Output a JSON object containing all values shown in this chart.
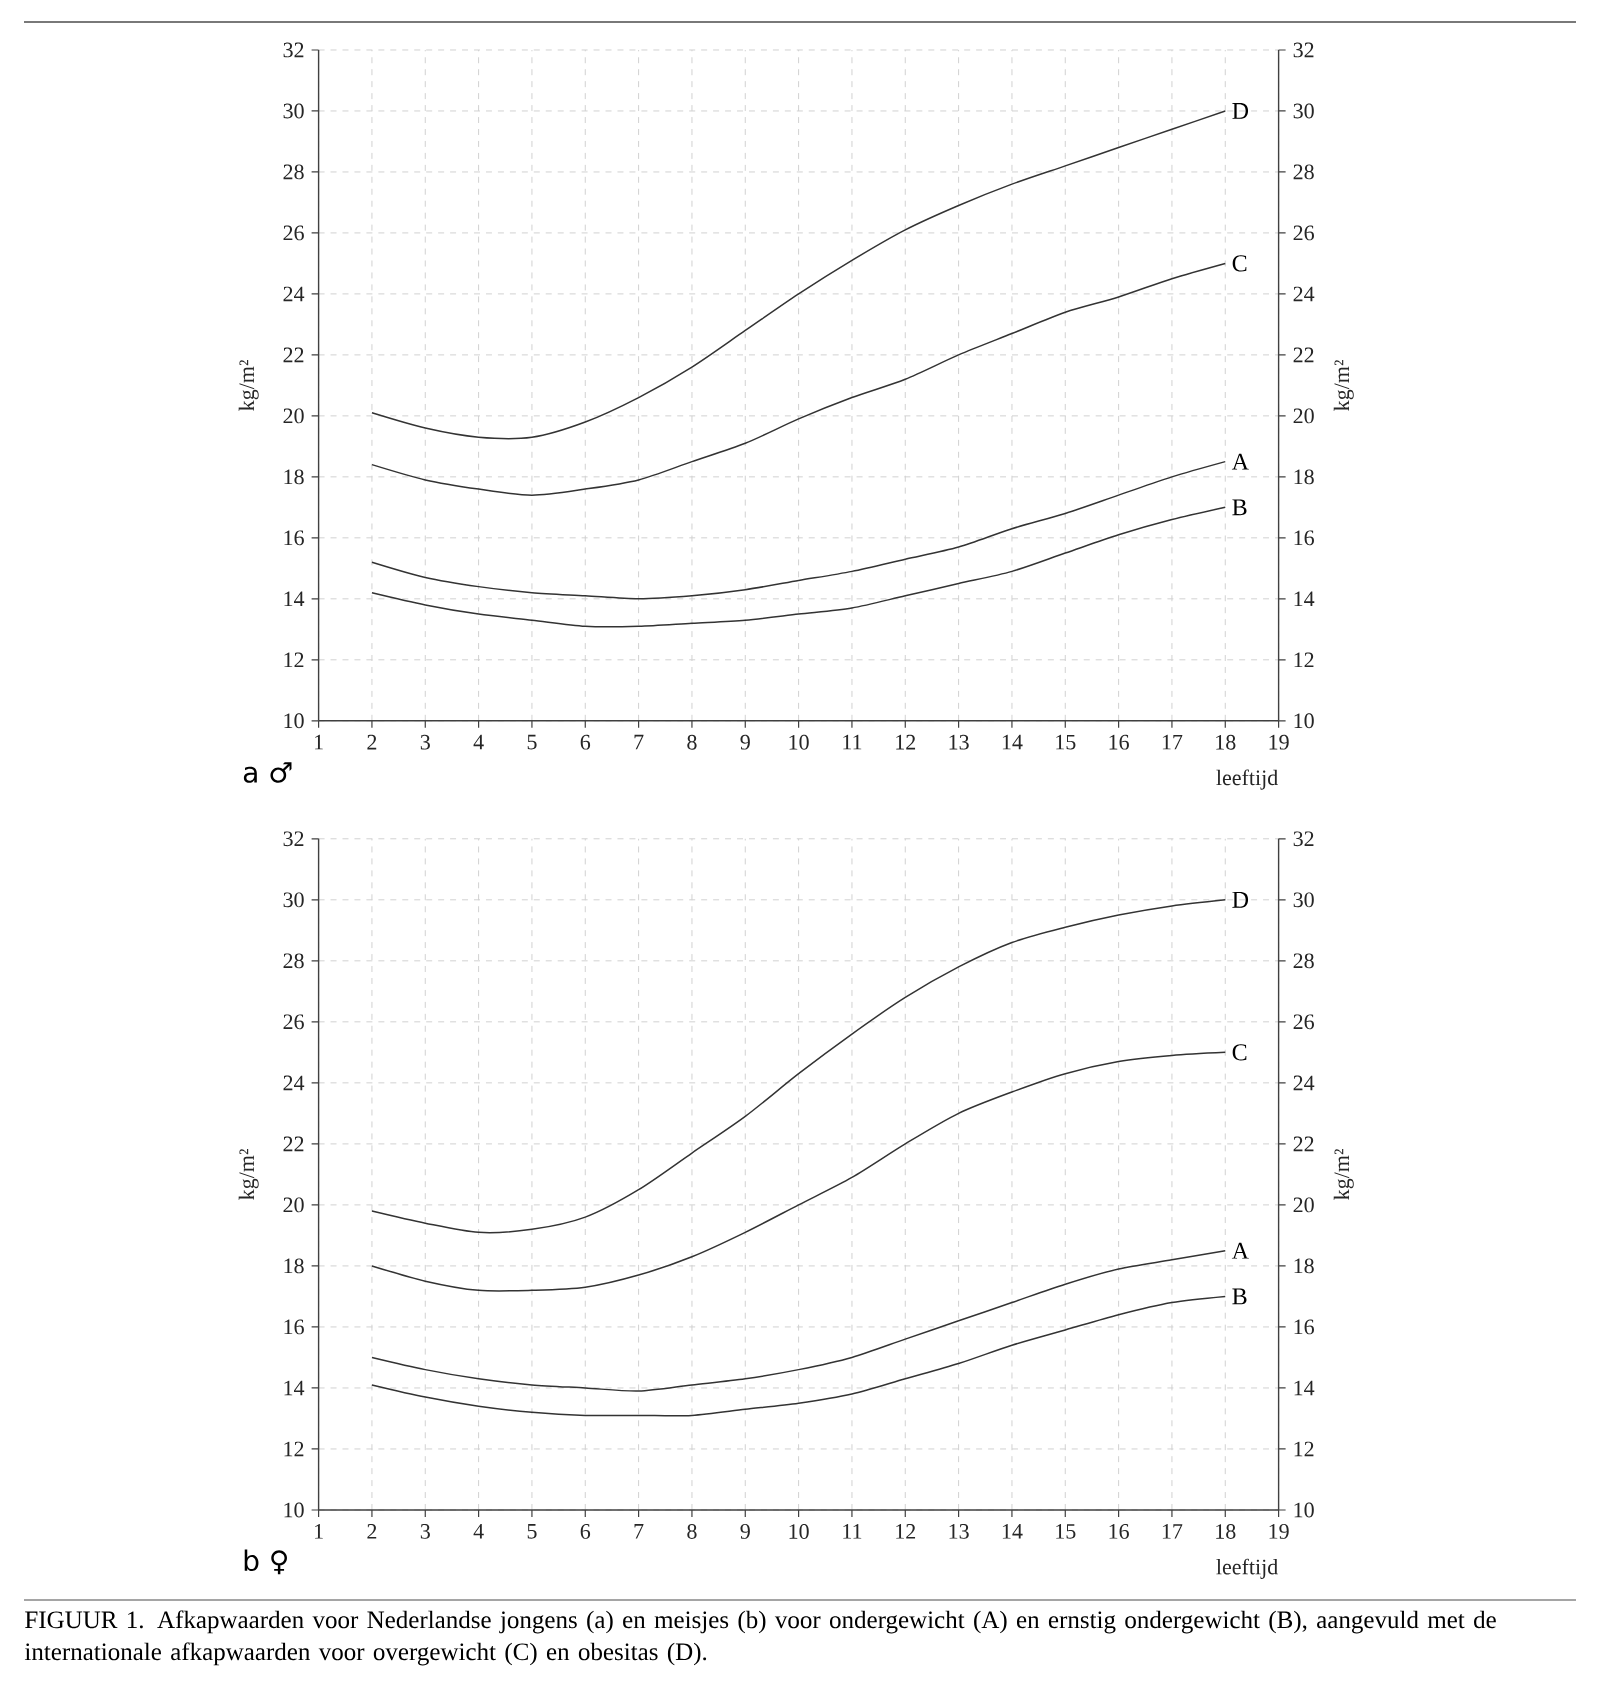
{
  "chart_data": [
    {
      "type": "line",
      "title": "a ♂",
      "xlabel": "leeftijd",
      "ylabel": "kg/m²",
      "y2label": "kg/m²",
      "x": [
        2,
        3,
        4,
        5,
        6,
        7,
        8,
        9,
        10,
        11,
        12,
        13,
        14,
        15,
        16,
        17,
        18
      ],
      "series": [
        {
          "name": "A",
          "color": "#333333",
          "values": [
            15.2,
            14.7,
            14.4,
            14.2,
            14.1,
            14.0,
            14.1,
            14.3,
            14.6,
            14.9,
            15.3,
            15.7,
            16.3,
            16.8,
            17.4,
            18.0,
            18.5
          ]
        },
        {
          "name": "B",
          "color": "#333333",
          "values": [
            14.2,
            13.8,
            13.5,
            13.3,
            13.1,
            13.1,
            13.2,
            13.3,
            13.5,
            13.7,
            14.1,
            14.5,
            14.9,
            15.5,
            16.1,
            16.6,
            17.0
          ]
        },
        {
          "name": "C",
          "color": "#333333",
          "values": [
            18.4,
            17.9,
            17.6,
            17.4,
            17.6,
            17.9,
            18.5,
            19.1,
            19.9,
            20.6,
            21.2,
            22.0,
            22.7,
            23.4,
            23.9,
            24.5,
            25.0
          ]
        },
        {
          "name": "D",
          "color": "#333333",
          "values": [
            20.1,
            19.6,
            19.3,
            19.3,
            19.8,
            20.6,
            21.6,
            22.8,
            24.0,
            25.1,
            26.1,
            26.9,
            27.6,
            28.2,
            28.8,
            29.4,
            30.0
          ]
        }
      ],
      "xlim": [
        1,
        19
      ],
      "xticks": [
        1,
        2,
        3,
        4,
        5,
        6,
        7,
        8,
        9,
        10,
        11,
        12,
        13,
        14,
        15,
        16,
        17,
        18,
        19
      ],
      "ylim": [
        10,
        32
      ],
      "yticks": [
        10,
        12,
        14,
        16,
        18,
        20,
        22,
        24,
        26,
        28,
        30,
        32
      ],
      "y2lim": [
        10,
        32
      ],
      "y2ticks": [
        10,
        12,
        14,
        16,
        18,
        20,
        22,
        24,
        26,
        28,
        30,
        32
      ],
      "grid": true,
      "line_style": "solid"
    },
    {
      "type": "line",
      "title": "b ♀",
      "xlabel": "leeftijd",
      "ylabel": "kg/m²",
      "y2label": "kg/m²",
      "x": [
        2,
        3,
        4,
        5,
        6,
        7,
        8,
        9,
        10,
        11,
        12,
        13,
        14,
        15,
        16,
        17,
        18
      ],
      "series": [
        {
          "name": "A",
          "color": "#333333",
          "values": [
            15.0,
            14.6,
            14.3,
            14.1,
            14.0,
            13.9,
            14.1,
            14.3,
            14.6,
            15.0,
            15.6,
            16.2,
            16.8,
            17.4,
            17.9,
            18.2,
            18.5
          ]
        },
        {
          "name": "B",
          "color": "#333333",
          "values": [
            14.1,
            13.7,
            13.4,
            13.2,
            13.1,
            13.1,
            13.1,
            13.3,
            13.5,
            13.8,
            14.3,
            14.8,
            15.4,
            15.9,
            16.4,
            16.8,
            17.0
          ]
        },
        {
          "name": "C",
          "color": "#333333",
          "values": [
            18.0,
            17.5,
            17.2,
            17.2,
            17.3,
            17.7,
            18.3,
            19.1,
            20.0,
            20.9,
            22.0,
            23.0,
            23.7,
            24.3,
            24.7,
            24.9,
            25.0
          ]
        },
        {
          "name": "D",
          "color": "#333333",
          "values": [
            19.8,
            19.4,
            19.1,
            19.2,
            19.6,
            20.5,
            21.7,
            22.9,
            24.3,
            25.6,
            26.8,
            27.8,
            28.6,
            29.1,
            29.5,
            29.8,
            30.0
          ]
        }
      ],
      "xlim": [
        1,
        19
      ],
      "xticks": [
        1,
        2,
        3,
        4,
        5,
        6,
        7,
        8,
        9,
        10,
        11,
        12,
        13,
        14,
        15,
        16,
        17,
        18,
        19
      ],
      "ylim": [
        10,
        32
      ],
      "yticks": [
        10,
        12,
        14,
        16,
        18,
        20,
        22,
        24,
        26,
        28,
        30,
        32
      ],
      "y2lim": [
        10,
        32
      ],
      "y2ticks": [
        10,
        12,
        14,
        16,
        18,
        20,
        22,
        24,
        26,
        28,
        30,
        32
      ],
      "grid": true,
      "line_style": "solid",
      "annotations": [
        "FIGUUR 1. Afkapwaarden voor Nederlandse jongens (a) en meisjes (b) voor ondergewicht (A) en ernstig ondergewicht (B), aangevuld met de internationale afkapwaarden voor overgewicht (C) en obesitas (D)."
      ]
    }
  ]
}
